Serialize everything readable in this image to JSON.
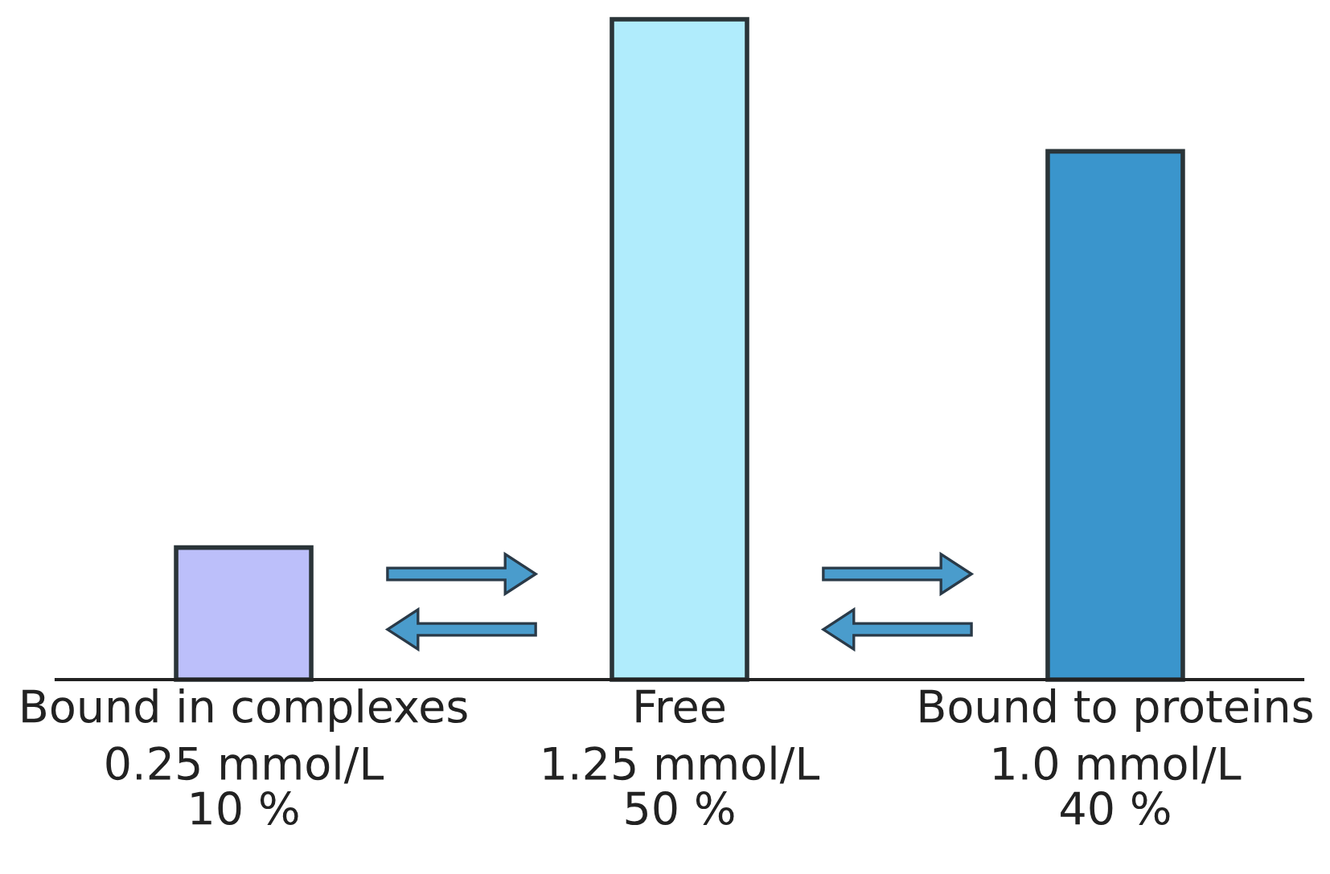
{
  "chart_data": {
    "type": "bar",
    "categories": [
      "Bound in complexes",
      "Free",
      "Bound to proteins"
    ],
    "values": [
      0.25,
      1.25,
      1.0
    ],
    "colors": [
      "#bcbffa",
      "#b0ecfc",
      "#3a95cc"
    ],
    "value_labels": [
      "0.25 mmol/L\n10 %",
      "1.25 mmol/L\n50 %",
      "1.0 mmol/L\n40 %"
    ],
    "grid": false,
    "legend": false
  }
}
